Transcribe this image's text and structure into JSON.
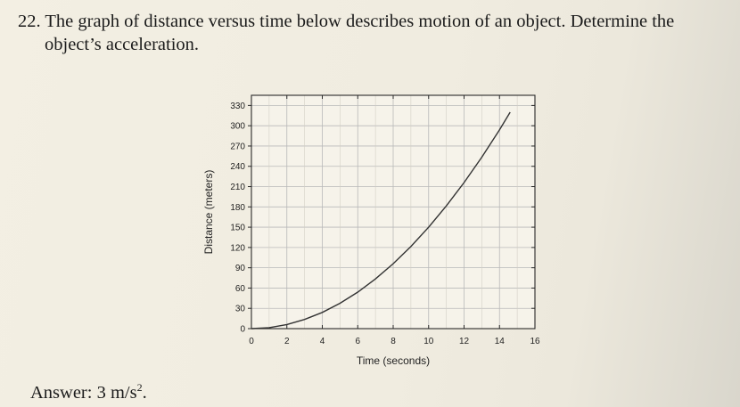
{
  "question": {
    "number": "22.",
    "line1": "The graph of distance versus time below describes motion of an object. Determine the",
    "line2": "object’s acceleration."
  },
  "answer": {
    "prefix": "Answer: 3 m/s",
    "sup": "2",
    "suffix": "."
  },
  "chart_data": {
    "type": "line",
    "xlabel": "Time (seconds)",
    "ylabel": "Distance (meters)",
    "xlim": [
      0,
      16
    ],
    "ylim": [
      0,
      345
    ],
    "x_ticks": [
      "0",
      "2",
      "4",
      "6",
      "8",
      "10",
      "12",
      "14",
      "16"
    ],
    "y_ticks": [
      "0",
      "30",
      "60",
      "90",
      "120",
      "150",
      "180",
      "210",
      "240",
      "270",
      "300",
      "330"
    ],
    "grid": true,
    "series": [
      {
        "x": [
          0,
          1,
          2,
          3,
          4,
          5,
          6,
          7,
          8,
          9,
          10,
          11,
          12,
          13,
          14,
          14.6
        ],
        "values": [
          0,
          1.5,
          6,
          13.5,
          24,
          37.5,
          54,
          73.5,
          96,
          121.5,
          150,
          181.5,
          216,
          253.5,
          294,
          320
        ],
        "color": "#333333"
      }
    ]
  }
}
